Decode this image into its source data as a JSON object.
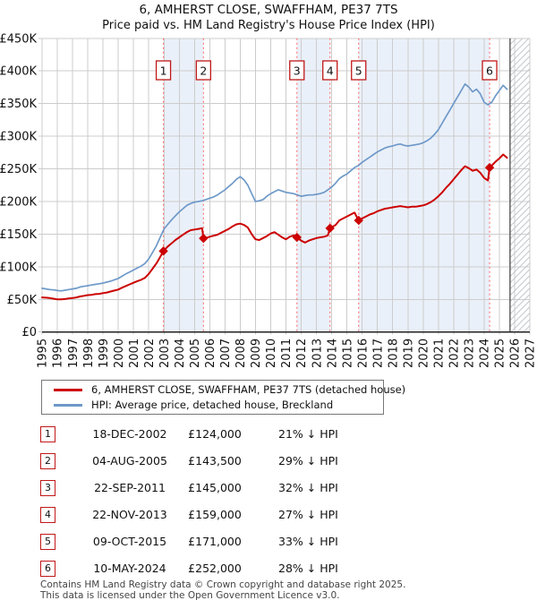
{
  "title": "6, AMHERST CLOSE, SWAFFHAM, PE37 7TS",
  "subtitle": "Price paid vs. HM Land Registry's House Price Index (HPI)",
  "legend": {
    "items": [
      {
        "label": "6, AMHERST CLOSE, SWAFFHAM, PE37 7TS (detached house)",
        "color": "#cc0000"
      },
      {
        "label": "HPI: Average price, detached house, Breckland",
        "color": "#6e99c9"
      }
    ]
  },
  "transactions": [
    {
      "num": "1",
      "date": "18-DEC-2002",
      "price": "£124,000",
      "hpi_delta": "21% ↓ HPI"
    },
    {
      "num": "2",
      "date": "04-AUG-2005",
      "price": "£143,500",
      "hpi_delta": "29% ↓ HPI"
    },
    {
      "num": "3",
      "date": "22-SEP-2011",
      "price": "£145,000",
      "hpi_delta": "32% ↓ HPI"
    },
    {
      "num": "4",
      "date": "22-NOV-2013",
      "price": "£159,000",
      "hpi_delta": "27% ↓ HPI"
    },
    {
      "num": "5",
      "date": "09-OCT-2015",
      "price": "£171,000",
      "hpi_delta": "33% ↓ HPI"
    },
    {
      "num": "6",
      "date": "10-MAY-2024",
      "price": "£252,000",
      "hpi_delta": "28% ↓ HPI"
    }
  ],
  "footer": {
    "line1": "Contains HM Land Registry data © Crown copyright and database right 2025.",
    "line2": "This data is licensed under the Open Government Licence v3.0."
  },
  "chart_data": {
    "type": "line",
    "title": "6, AMHERST CLOSE, SWAFFHAM, PE37 7TS",
    "subtitle": "Price paid vs. HM Land Registry's House Price Index (HPI)",
    "x_range": [
      1995,
      2027
    ],
    "ylim": [
      0,
      450000
    ],
    "y_tick_step": 50000,
    "y_tick_labels": [
      "£0",
      "£50K",
      "£100K",
      "£150K",
      "£200K",
      "£250K",
      "£300K",
      "£350K",
      "£400K",
      "£450K"
    ],
    "x_ticks": [
      1995,
      1996,
      1997,
      1998,
      1999,
      2000,
      2001,
      2002,
      2003,
      2004,
      2005,
      2006,
      2007,
      2008,
      2009,
      2010,
      2011,
      2012,
      2013,
      2014,
      2015,
      2016,
      2017,
      2018,
      2019,
      2020,
      2021,
      2022,
      2023,
      2024,
      2025,
      2026,
      2027
    ],
    "grid": true,
    "legend_position": "below",
    "future_hatch_start": 2025.7,
    "ownership_bands": [
      [
        2002.96,
        2005.59
      ],
      [
        2011.72,
        2013.89
      ],
      [
        2015.77,
        2024.36
      ]
    ],
    "sale_markers": [
      {
        "num": "1",
        "x": 2002.96,
        "y": 124000
      },
      {
        "num": "2",
        "x": 2005.59,
        "y": 143500
      },
      {
        "num": "3",
        "x": 2011.72,
        "y": 145000
      },
      {
        "num": "4",
        "x": 2013.89,
        "y": 159000
      },
      {
        "num": "5",
        "x": 2015.77,
        "y": 171000
      },
      {
        "num": "6",
        "x": 2024.36,
        "y": 252000
      }
    ],
    "series": [
      {
        "name": "6, AMHERST CLOSE, SWAFFHAM, PE37 7TS (detached house)",
        "color": "#cc0000",
        "width": 2,
        "points": [
          [
            1995.0,
            53000
          ],
          [
            1995.25,
            52500
          ],
          [
            1995.5,
            52000
          ],
          [
            1995.75,
            51000
          ],
          [
            1996.0,
            50000
          ],
          [
            1996.25,
            50000
          ],
          [
            1996.5,
            50500
          ],
          [
            1996.75,
            51500
          ],
          [
            1997.0,
            52000
          ],
          [
            1997.25,
            53000
          ],
          [
            1997.5,
            54500
          ],
          [
            1997.75,
            55500
          ],
          [
            1998.0,
            56500
          ],
          [
            1998.25,
            57000
          ],
          [
            1998.5,
            58000
          ],
          [
            1998.75,
            58500
          ],
          [
            1999.0,
            59500
          ],
          [
            1999.25,
            60500
          ],
          [
            1999.5,
            62000
          ],
          [
            1999.75,
            63500
          ],
          [
            2000.0,
            65000
          ],
          [
            2000.25,
            68000
          ],
          [
            2000.5,
            70500
          ],
          [
            2000.75,
            73000
          ],
          [
            2001.0,
            75500
          ],
          [
            2001.25,
            78000
          ],
          [
            2001.5,
            80000
          ],
          [
            2001.75,
            83000
          ],
          [
            2002.0,
            89000
          ],
          [
            2002.25,
            97000
          ],
          [
            2002.5,
            105000
          ],
          [
            2002.75,
            115000
          ],
          [
            2002.96,
            124000
          ],
          [
            2003.25,
            131000
          ],
          [
            2003.5,
            136000
          ],
          [
            2003.75,
            141000
          ],
          [
            2004.0,
            145000
          ],
          [
            2004.25,
            149000
          ],
          [
            2004.5,
            153000
          ],
          [
            2004.75,
            156000
          ],
          [
            2005.0,
            157000
          ],
          [
            2005.25,
            158000
          ],
          [
            2005.5,
            159000
          ],
          [
            2005.59,
            143500
          ],
          [
            2005.75,
            144000
          ],
          [
            2006.0,
            146000
          ],
          [
            2006.25,
            147500
          ],
          [
            2006.5,
            149000
          ],
          [
            2006.75,
            152000
          ],
          [
            2007.0,
            155000
          ],
          [
            2007.25,
            158000
          ],
          [
            2007.5,
            162000
          ],
          [
            2007.75,
            165000
          ],
          [
            2008.0,
            166000
          ],
          [
            2008.25,
            164000
          ],
          [
            2008.5,
            160000
          ],
          [
            2008.75,
            150000
          ],
          [
            2009.0,
            142000
          ],
          [
            2009.25,
            141000
          ],
          [
            2009.5,
            144000
          ],
          [
            2009.75,
            147000
          ],
          [
            2010.0,
            151000
          ],
          [
            2010.25,
            153000
          ],
          [
            2010.5,
            149000
          ],
          [
            2010.75,
            145000
          ],
          [
            2011.0,
            142000
          ],
          [
            2011.25,
            146000
          ],
          [
            2011.5,
            148000
          ],
          [
            2011.72,
            145000
          ],
          [
            2012.0,
            140000
          ],
          [
            2012.25,
            137000
          ],
          [
            2012.5,
            140000
          ],
          [
            2012.75,
            142000
          ],
          [
            2013.0,
            144000
          ],
          [
            2013.25,
            145000
          ],
          [
            2013.5,
            146000
          ],
          [
            2013.75,
            148000
          ],
          [
            2013.89,
            159000
          ],
          [
            2014.25,
            164000
          ],
          [
            2014.5,
            171000
          ],
          [
            2014.75,
            174000
          ],
          [
            2015.0,
            177000
          ],
          [
            2015.25,
            180000
          ],
          [
            2015.5,
            183000
          ],
          [
            2015.77,
            171000
          ],
          [
            2016.0,
            174000
          ],
          [
            2016.25,
            177000
          ],
          [
            2016.5,
            180000
          ],
          [
            2016.75,
            182000
          ],
          [
            2017.0,
            185000
          ],
          [
            2017.25,
            187000
          ],
          [
            2017.5,
            189000
          ],
          [
            2017.75,
            190000
          ],
          [
            2018.0,
            191000
          ],
          [
            2018.25,
            192000
          ],
          [
            2018.5,
            193000
          ],
          [
            2018.75,
            192000
          ],
          [
            2019.0,
            191000
          ],
          [
            2019.25,
            192000
          ],
          [
            2019.5,
            192000
          ],
          [
            2019.75,
            193000
          ],
          [
            2020.0,
            194000
          ],
          [
            2020.25,
            196000
          ],
          [
            2020.5,
            199000
          ],
          [
            2020.75,
            203000
          ],
          [
            2021.0,
            208000
          ],
          [
            2021.25,
            214000
          ],
          [
            2021.5,
            221000
          ],
          [
            2021.75,
            227000
          ],
          [
            2022.0,
            234000
          ],
          [
            2022.25,
            241000
          ],
          [
            2022.5,
            248000
          ],
          [
            2022.75,
            254000
          ],
          [
            2023.0,
            251000
          ],
          [
            2023.25,
            247000
          ],
          [
            2023.5,
            249000
          ],
          [
            2023.75,
            244000
          ],
          [
            2024.0,
            236000
          ],
          [
            2024.25,
            232000
          ],
          [
            2024.36,
            252000
          ],
          [
            2024.5,
            255000
          ],
          [
            2024.75,
            261000
          ],
          [
            2025.0,
            266000
          ],
          [
            2025.25,
            272000
          ],
          [
            2025.5,
            267000
          ]
        ]
      },
      {
        "name": "HPI: Average price, detached house, Breckland",
        "color": "#6e99c9",
        "width": 1.7,
        "points": [
          [
            1995.0,
            67000
          ],
          [
            1995.25,
            66000
          ],
          [
            1995.5,
            65000
          ],
          [
            1995.75,
            64500
          ],
          [
            1996.0,
            63500
          ],
          [
            1996.25,
            63000
          ],
          [
            1996.5,
            64000
          ],
          [
            1996.75,
            65000
          ],
          [
            1997.0,
            66000
          ],
          [
            1997.25,
            67000
          ],
          [
            1997.5,
            69000
          ],
          [
            1997.75,
            70000
          ],
          [
            1998.0,
            71000
          ],
          [
            1998.25,
            72000
          ],
          [
            1998.5,
            73000
          ],
          [
            1998.75,
            74000
          ],
          [
            1999.0,
            75000
          ],
          [
            1999.25,
            76500
          ],
          [
            1999.5,
            78000
          ],
          [
            1999.75,
            80000
          ],
          [
            2000.0,
            82000
          ],
          [
            2000.25,
            85500
          ],
          [
            2000.5,
            89000
          ],
          [
            2000.75,
            92000
          ],
          [
            2001.0,
            95000
          ],
          [
            2001.25,
            98000
          ],
          [
            2001.5,
            101000
          ],
          [
            2001.75,
            105000
          ],
          [
            2002.0,
            112000
          ],
          [
            2002.25,
            122000
          ],
          [
            2002.5,
            132000
          ],
          [
            2002.75,
            145000
          ],
          [
            2003.0,
            158000
          ],
          [
            2003.25,
            165000
          ],
          [
            2003.5,
            172000
          ],
          [
            2003.75,
            178000
          ],
          [
            2004.0,
            184000
          ],
          [
            2004.25,
            189000
          ],
          [
            2004.5,
            194000
          ],
          [
            2004.75,
            197000
          ],
          [
            2005.0,
            199000
          ],
          [
            2005.25,
            200000
          ],
          [
            2005.5,
            201000
          ],
          [
            2005.75,
            203000
          ],
          [
            2006.0,
            205000
          ],
          [
            2006.25,
            207000
          ],
          [
            2006.5,
            210000
          ],
          [
            2006.75,
            214000
          ],
          [
            2007.0,
            218000
          ],
          [
            2007.25,
            223000
          ],
          [
            2007.5,
            228000
          ],
          [
            2007.75,
            234000
          ],
          [
            2008.0,
            238000
          ],
          [
            2008.25,
            233000
          ],
          [
            2008.5,
            225000
          ],
          [
            2008.75,
            212000
          ],
          [
            2009.0,
            200000
          ],
          [
            2009.25,
            201000
          ],
          [
            2009.5,
            203000
          ],
          [
            2009.75,
            208000
          ],
          [
            2010.0,
            212000
          ],
          [
            2010.25,
            215000
          ],
          [
            2010.5,
            218000
          ],
          [
            2010.75,
            216000
          ],
          [
            2011.0,
            214000
          ],
          [
            2011.25,
            213000
          ],
          [
            2011.5,
            212000
          ],
          [
            2011.75,
            210000
          ],
          [
            2012.0,
            208000
          ],
          [
            2012.25,
            209000
          ],
          [
            2012.5,
            210000
          ],
          [
            2012.75,
            210000
          ],
          [
            2013.0,
            211000
          ],
          [
            2013.25,
            212000
          ],
          [
            2013.5,
            214000
          ],
          [
            2013.75,
            218000
          ],
          [
            2014.0,
            222000
          ],
          [
            2014.25,
            228000
          ],
          [
            2014.5,
            235000
          ],
          [
            2014.75,
            239000
          ],
          [
            2015.0,
            242000
          ],
          [
            2015.25,
            247000
          ],
          [
            2015.5,
            252000
          ],
          [
            2015.75,
            255000
          ],
          [
            2016.0,
            260000
          ],
          [
            2016.25,
            264000
          ],
          [
            2016.5,
            268000
          ],
          [
            2016.75,
            272000
          ],
          [
            2017.0,
            276000
          ],
          [
            2017.25,
            279000
          ],
          [
            2017.5,
            282000
          ],
          [
            2017.75,
            284000
          ],
          [
            2018.0,
            285000
          ],
          [
            2018.25,
            287000
          ],
          [
            2018.5,
            288000
          ],
          [
            2018.75,
            286000
          ],
          [
            2019.0,
            285000
          ],
          [
            2019.25,
            286000
          ],
          [
            2019.5,
            287000
          ],
          [
            2019.75,
            288000
          ],
          [
            2020.0,
            290000
          ],
          [
            2020.25,
            293000
          ],
          [
            2020.5,
            297000
          ],
          [
            2020.75,
            303000
          ],
          [
            2021.0,
            310000
          ],
          [
            2021.25,
            320000
          ],
          [
            2021.5,
            330000
          ],
          [
            2021.75,
            340000
          ],
          [
            2022.0,
            350000
          ],
          [
            2022.25,
            360000
          ],
          [
            2022.5,
            370000
          ],
          [
            2022.75,
            380000
          ],
          [
            2023.0,
            375000
          ],
          [
            2023.25,
            368000
          ],
          [
            2023.5,
            372000
          ],
          [
            2023.75,
            365000
          ],
          [
            2024.0,
            352000
          ],
          [
            2024.25,
            348000
          ],
          [
            2024.5,
            352000
          ],
          [
            2024.75,
            362000
          ],
          [
            2025.0,
            370000
          ],
          [
            2025.25,
            378000
          ],
          [
            2025.5,
            372000
          ]
        ]
      }
    ]
  }
}
